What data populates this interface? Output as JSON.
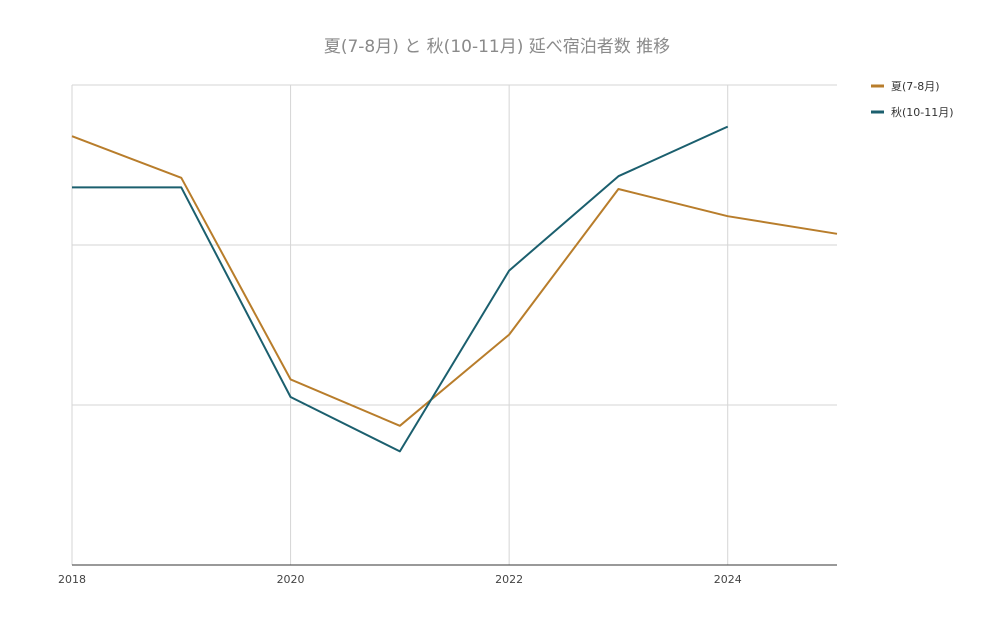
{
  "chart_data": {
    "type": "line",
    "title": "夏(7-8月) と 秋(10-11月) 延べ宿泊者数 推移",
    "xlabel": "",
    "ylabel": "",
    "x": [
      2018,
      2019,
      2020,
      2021,
      2022,
      2023,
      2024,
      2025
    ],
    "xlim": [
      2018,
      2025
    ],
    "ylim": [
      0,
      3
    ],
    "x_tick_labels": [
      "2018",
      "2020",
      "2022",
      "2024"
    ],
    "grid": true,
    "legend_position": "top-right",
    "series": [
      {
        "name": "夏(7-8月)",
        "color": "#b87d2b",
        "values": [
          2.68,
          2.42,
          1.16,
          0.87,
          1.44,
          2.35,
          2.18,
          2.07
        ]
      },
      {
        "name": "秋(10-11月)",
        "color": "#1b5f6e",
        "values": [
          2.36,
          2.36,
          1.05,
          0.71,
          1.84,
          2.43,
          2.74,
          null
        ]
      }
    ]
  }
}
